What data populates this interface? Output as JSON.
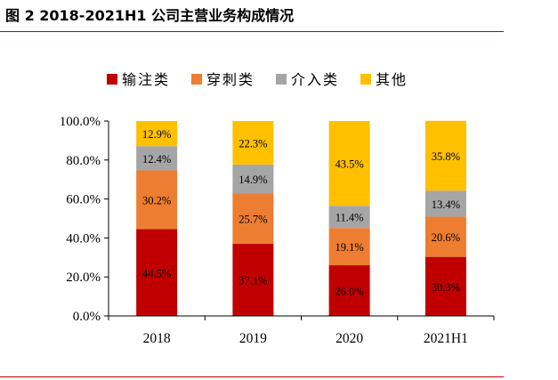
{
  "figure": {
    "title": "图 2 2018-2021H1 公司主营业务构成情况",
    "rule_color": "#c00000"
  },
  "chart_data": {
    "type": "bar",
    "stacked": true,
    "title": "",
    "xlabel": "",
    "ylabel": "",
    "categories": [
      "2018",
      "2019",
      "2020",
      "2021H1"
    ],
    "ylim": [
      0,
      100
    ],
    "yticks": [
      0,
      20,
      40,
      60,
      80,
      100
    ],
    "ytick_labels": [
      "0.0%",
      "20.0%",
      "40.0%",
      "60.0%",
      "80.0%",
      "100.0%"
    ],
    "legend_position": "top",
    "series": [
      {
        "name": "输注类",
        "color": "#c00000",
        "values": [
          44.5,
          37.1,
          26.0,
          30.3
        ],
        "labels": [
          "44.5%",
          "37.1%",
          "26.0%",
          "30.3%"
        ]
      },
      {
        "name": "穿刺类",
        "color": "#ed7d31",
        "values": [
          30.2,
          25.7,
          19.1,
          20.6
        ],
        "labels": [
          "30.2%",
          "25.7%",
          "19.1%",
          "20.6%"
        ]
      },
      {
        "name": "介入类",
        "color": "#a5a5a5",
        "values": [
          12.4,
          14.9,
          11.4,
          13.4
        ],
        "labels": [
          "12.4%",
          "14.9%",
          "11.4%",
          "13.4%"
        ]
      },
      {
        "name": "其他",
        "color": "#ffc000",
        "values": [
          12.9,
          22.3,
          43.5,
          35.8
        ],
        "labels": [
          "12.9%",
          "22.3%",
          "43.5%",
          "35.8%"
        ]
      }
    ]
  }
}
